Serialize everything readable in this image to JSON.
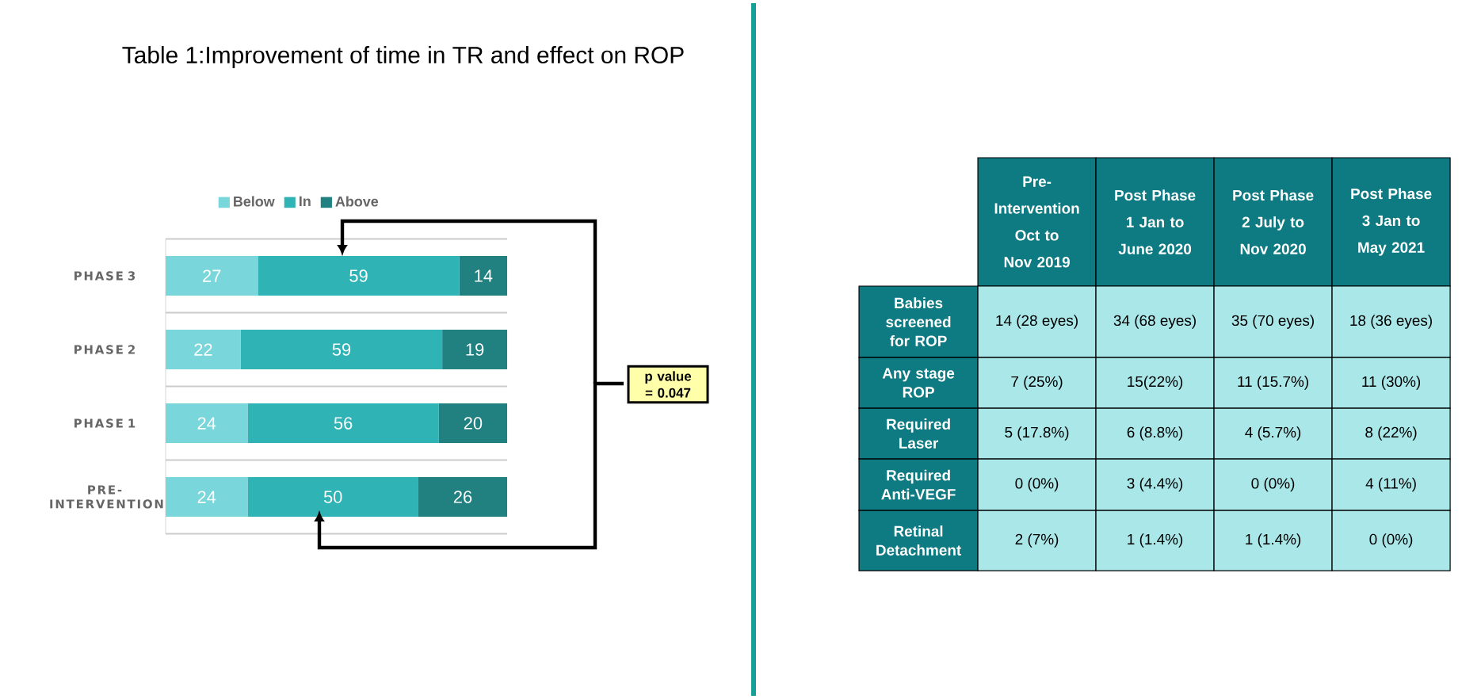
{
  "chart_data": [
    {
      "type": "bar",
      "title": "Table 1:Improvement of time in TR and effect on ROP",
      "orientation": "horizontal",
      "stacked": true,
      "data_labels": true,
      "legend": "top",
      "grid": "y",
      "xlim": [
        0,
        100
      ],
      "tick_labels": "y",
      "categories": [
        "PHASE 3",
        "PHASE 2",
        "PHASE 1",
        "PRE-INTERVENTION"
      ],
      "series": [
        {
          "name": "Below",
          "color": "#79d6da",
          "values": [
            27,
            22,
            24,
            24
          ]
        },
        {
          "name": "In",
          "color": "#2fb3b5",
          "values": [
            59,
            59,
            56,
            50
          ]
        },
        {
          "name": "Above",
          "color": "#218080",
          "values": [
            14,
            19,
            20,
            26
          ]
        }
      ],
      "annotations": [
        "p value = 0.047"
      ]
    },
    {
      "type": "other",
      "categories": [
        "Pre-Intervention Oct to Nov 2019",
        "Post Phase 1 Jan to June 2020",
        "Post Phase 2 July to Nov 2020",
        "Post Phase 3 Jan to May 2021"
      ],
      "y_categories": [
        "Babies screened for ROP",
        "Any stage ROP",
        "Required Laser",
        "Required Anti-VEGF",
        "Retinal Detachment"
      ],
      "cell_labels": [
        [
          "14 (28 eyes)",
          "34 (68 eyes)",
          "35 (70 eyes)",
          "18 (36 eyes)"
        ],
        [
          "7 (25%)",
          "15(22%)",
          "11 (15.7%)",
          "11 (30%)"
        ],
        [
          "5 (17.8%)",
          "6 (8.8%)",
          "4 (5.7%)",
          "8 (22%)"
        ],
        [
          "0 (0%)",
          "3 (4.4%)",
          "0 (0%)",
          "4 (11%)"
        ],
        [
          "2 (7%)",
          "1 (1.4%)",
          "1 (1.4%)",
          "0 (0%)"
        ]
      ]
    }
  ]
}
